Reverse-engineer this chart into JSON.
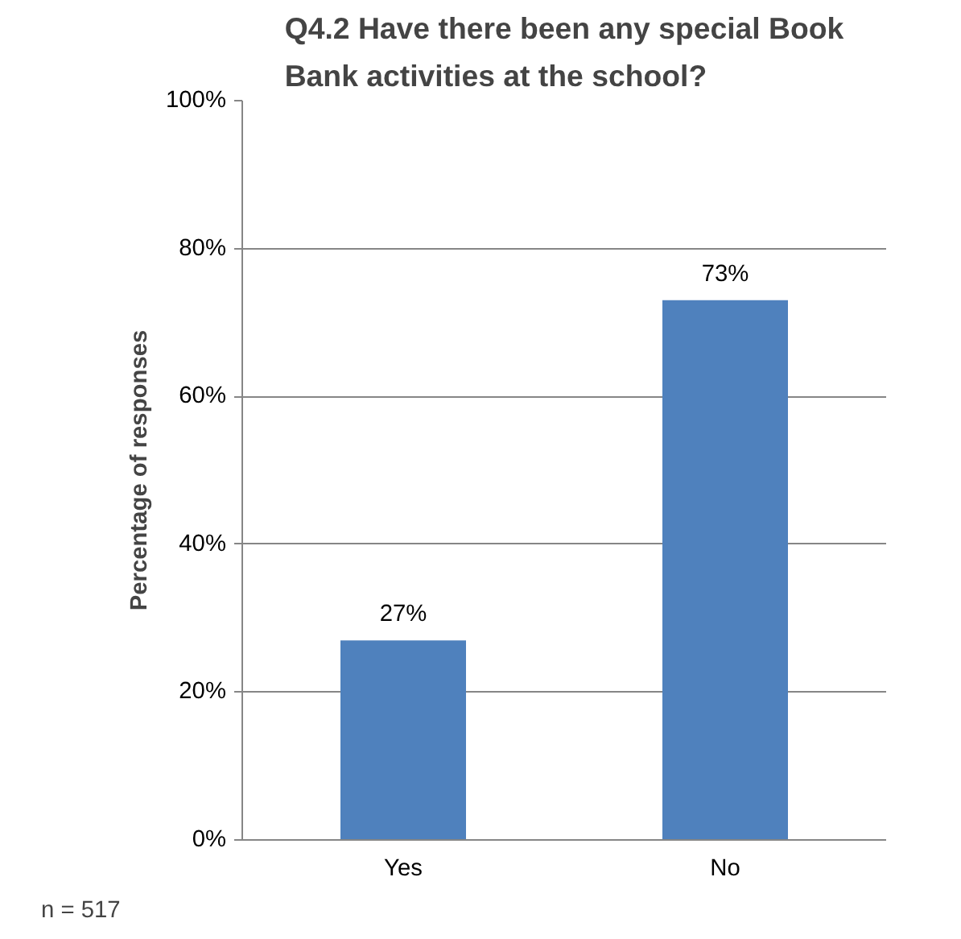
{
  "chart_data": {
    "type": "bar",
    "title": "Q4.2 Have there been any special Book Bank activities at the school?",
    "ylabel": "Percentage of responses",
    "categories": [
      "Yes",
      "No"
    ],
    "values": [
      27,
      73
    ],
    "color": "#4f81bd",
    "value_labels": [
      "27%",
      "73%"
    ],
    "ylim": [
      0,
      100
    ],
    "yticks": [
      {
        "value": 0,
        "label": "0%"
      },
      {
        "value": 20,
        "label": "20%"
      },
      {
        "value": 40,
        "label": "40%"
      },
      {
        "value": 60,
        "label": "60%"
      },
      {
        "value": 80,
        "label": "80%"
      },
      {
        "value": 100,
        "label": "100%"
      }
    ],
    "grid": "y",
    "annotations": [
      "n = 517"
    ]
  }
}
